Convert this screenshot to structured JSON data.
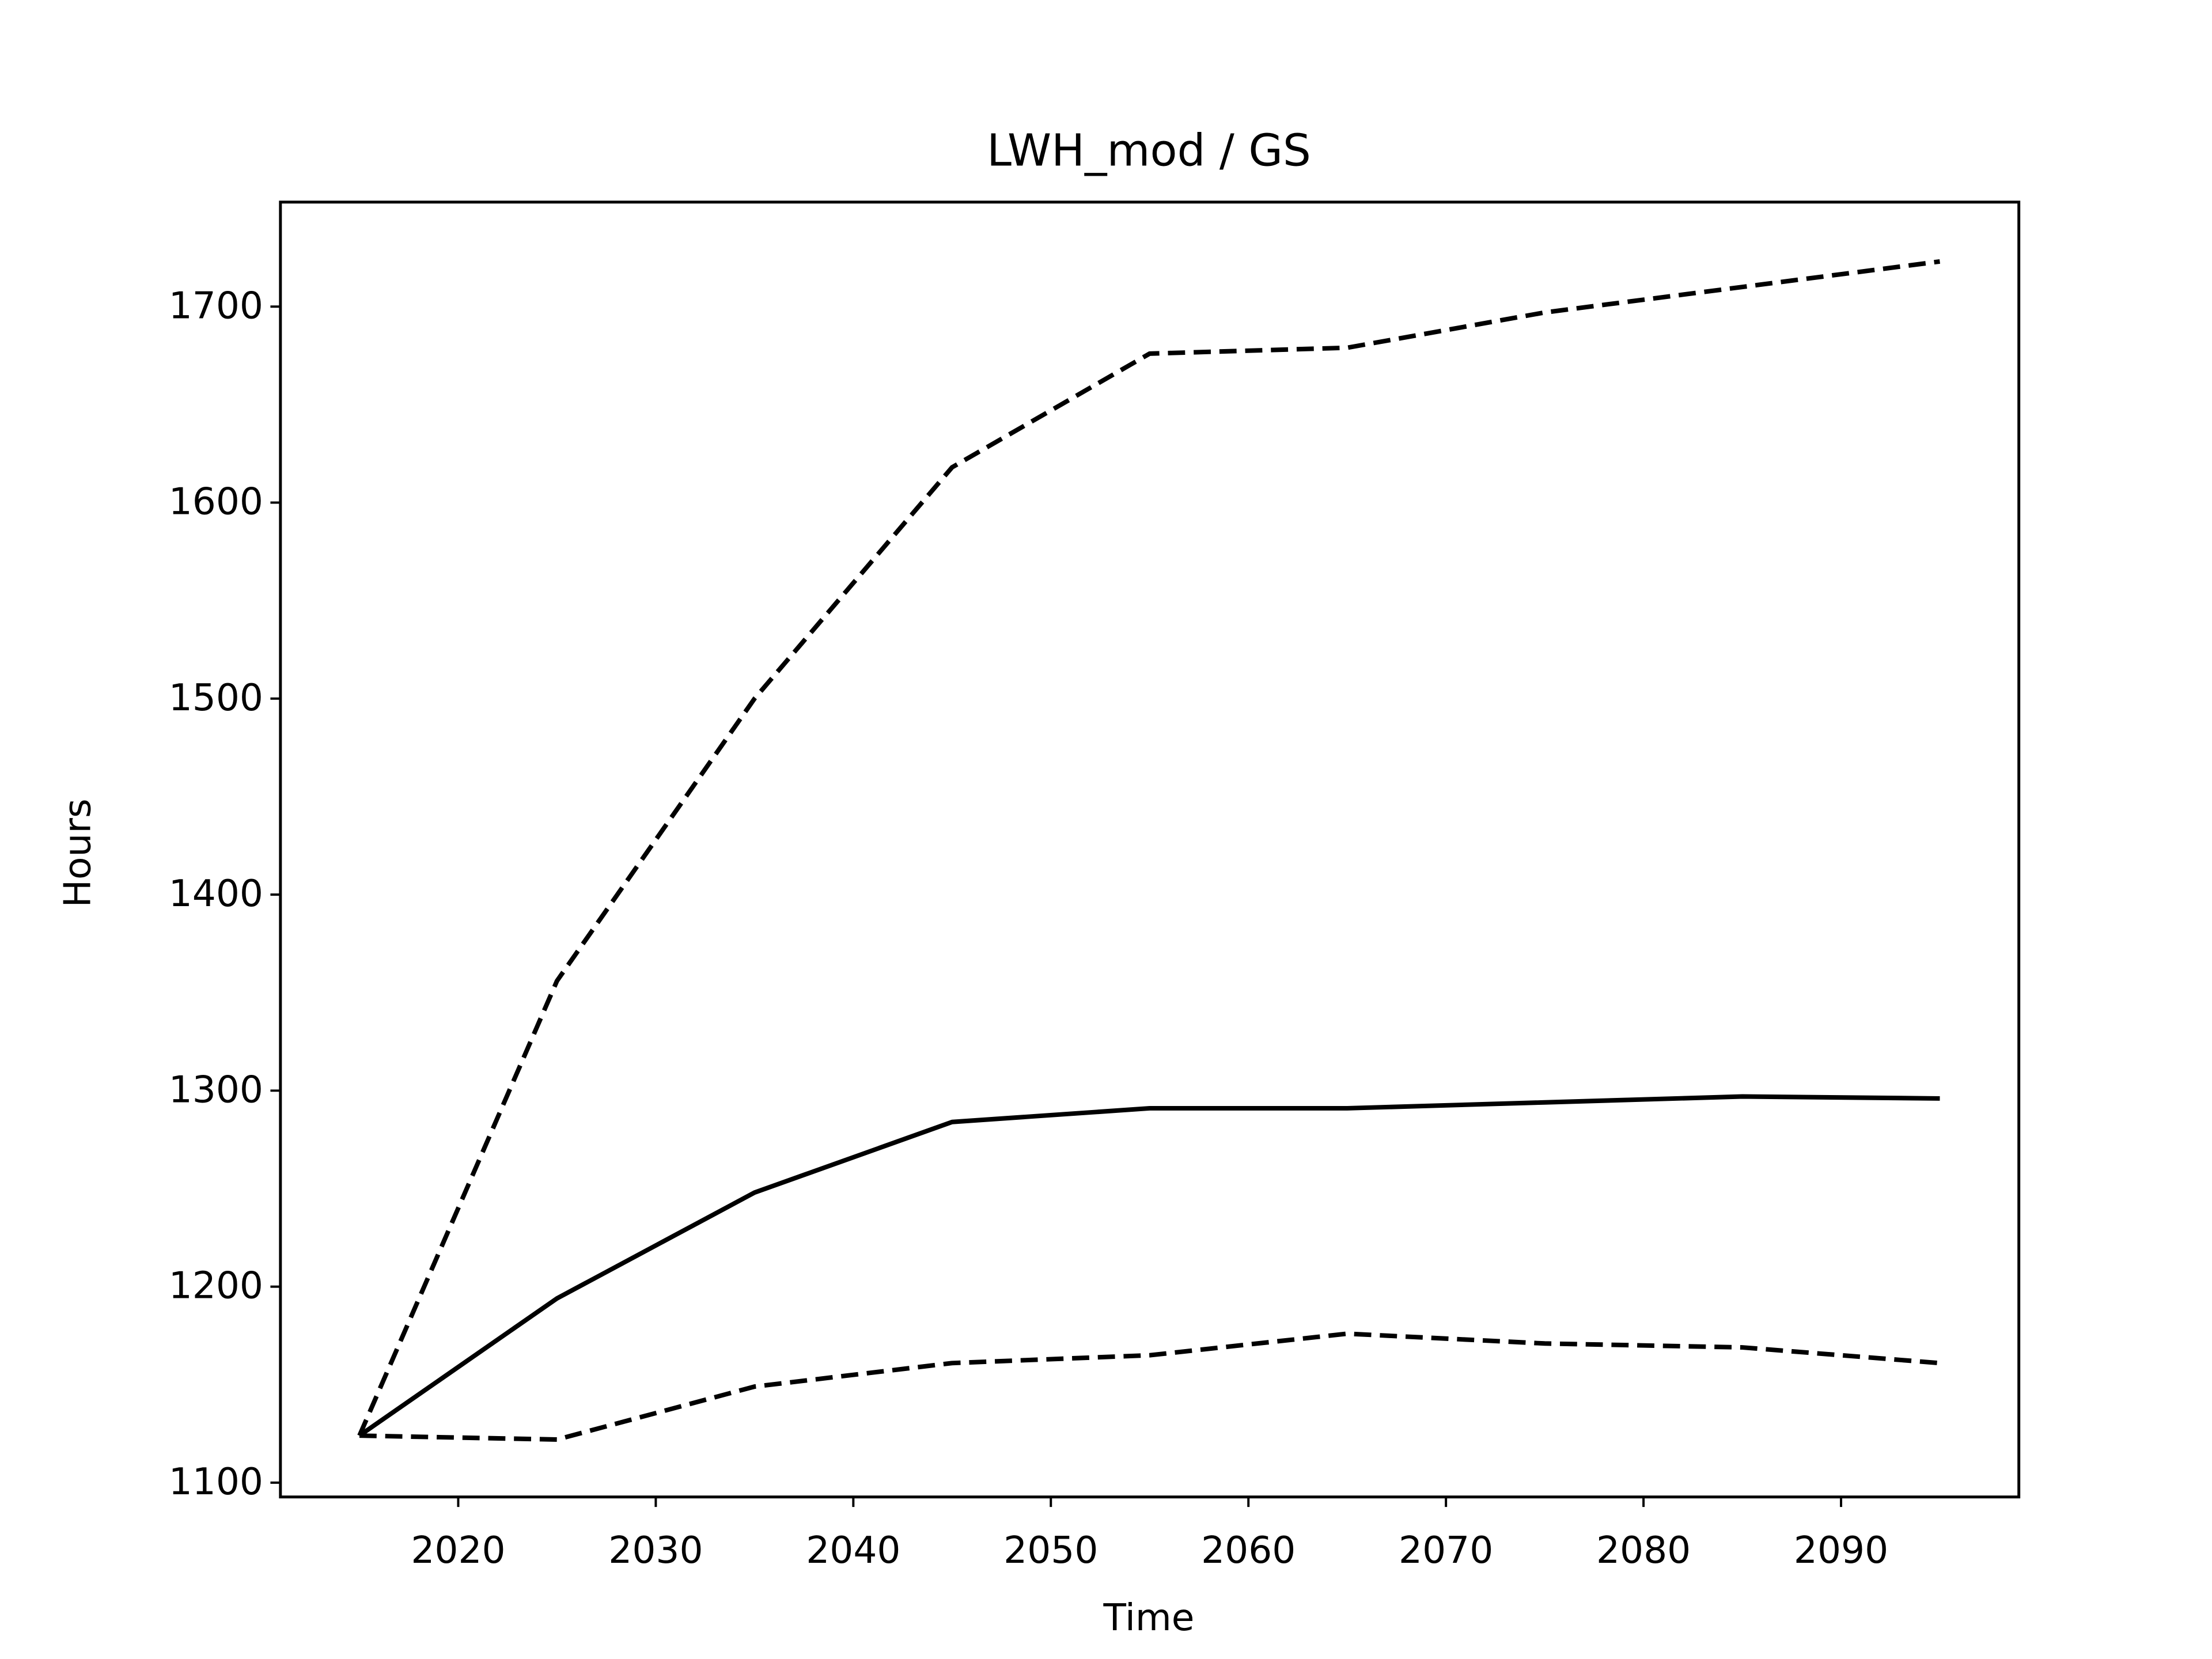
{
  "chart_data": {
    "type": "line",
    "title": "LWH_mod / GS",
    "xlabel": "Time",
    "ylabel": "Hours",
    "x": [
      2015,
      2025,
      2035,
      2045,
      2055,
      2065,
      2075,
      2085,
      2095
    ],
    "series": [
      {
        "color": "#000000",
        "linestyle": "solid",
        "values": [
          1124,
          1194,
          1248,
          1284,
          1291,
          1291,
          1294,
          1297,
          1296
        ]
      },
      {
        "color": "#000000",
        "linestyle": "dashed",
        "values": [
          1124,
          1356,
          1500,
          1618,
          1676,
          1679,
          1697,
          1710,
          1723
        ]
      },
      {
        "color": "#000000",
        "linestyle": "dashed",
        "values": [
          1124,
          1122,
          1149,
          1161,
          1165,
          1176,
          1171,
          1169,
          1161
        ]
      }
    ],
    "xlim": [
      2011,
      2099
    ],
    "xticks": [
      2020,
      2030,
      2040,
      2050,
      2060,
      2070,
      2080,
      2090
    ],
    "ylim": [
      1092.7,
      1753.3
    ],
    "yticks": [
      1100,
      1200,
      1300,
      1400,
      1500,
      1600,
      1700
    ],
    "grid": false
  }
}
